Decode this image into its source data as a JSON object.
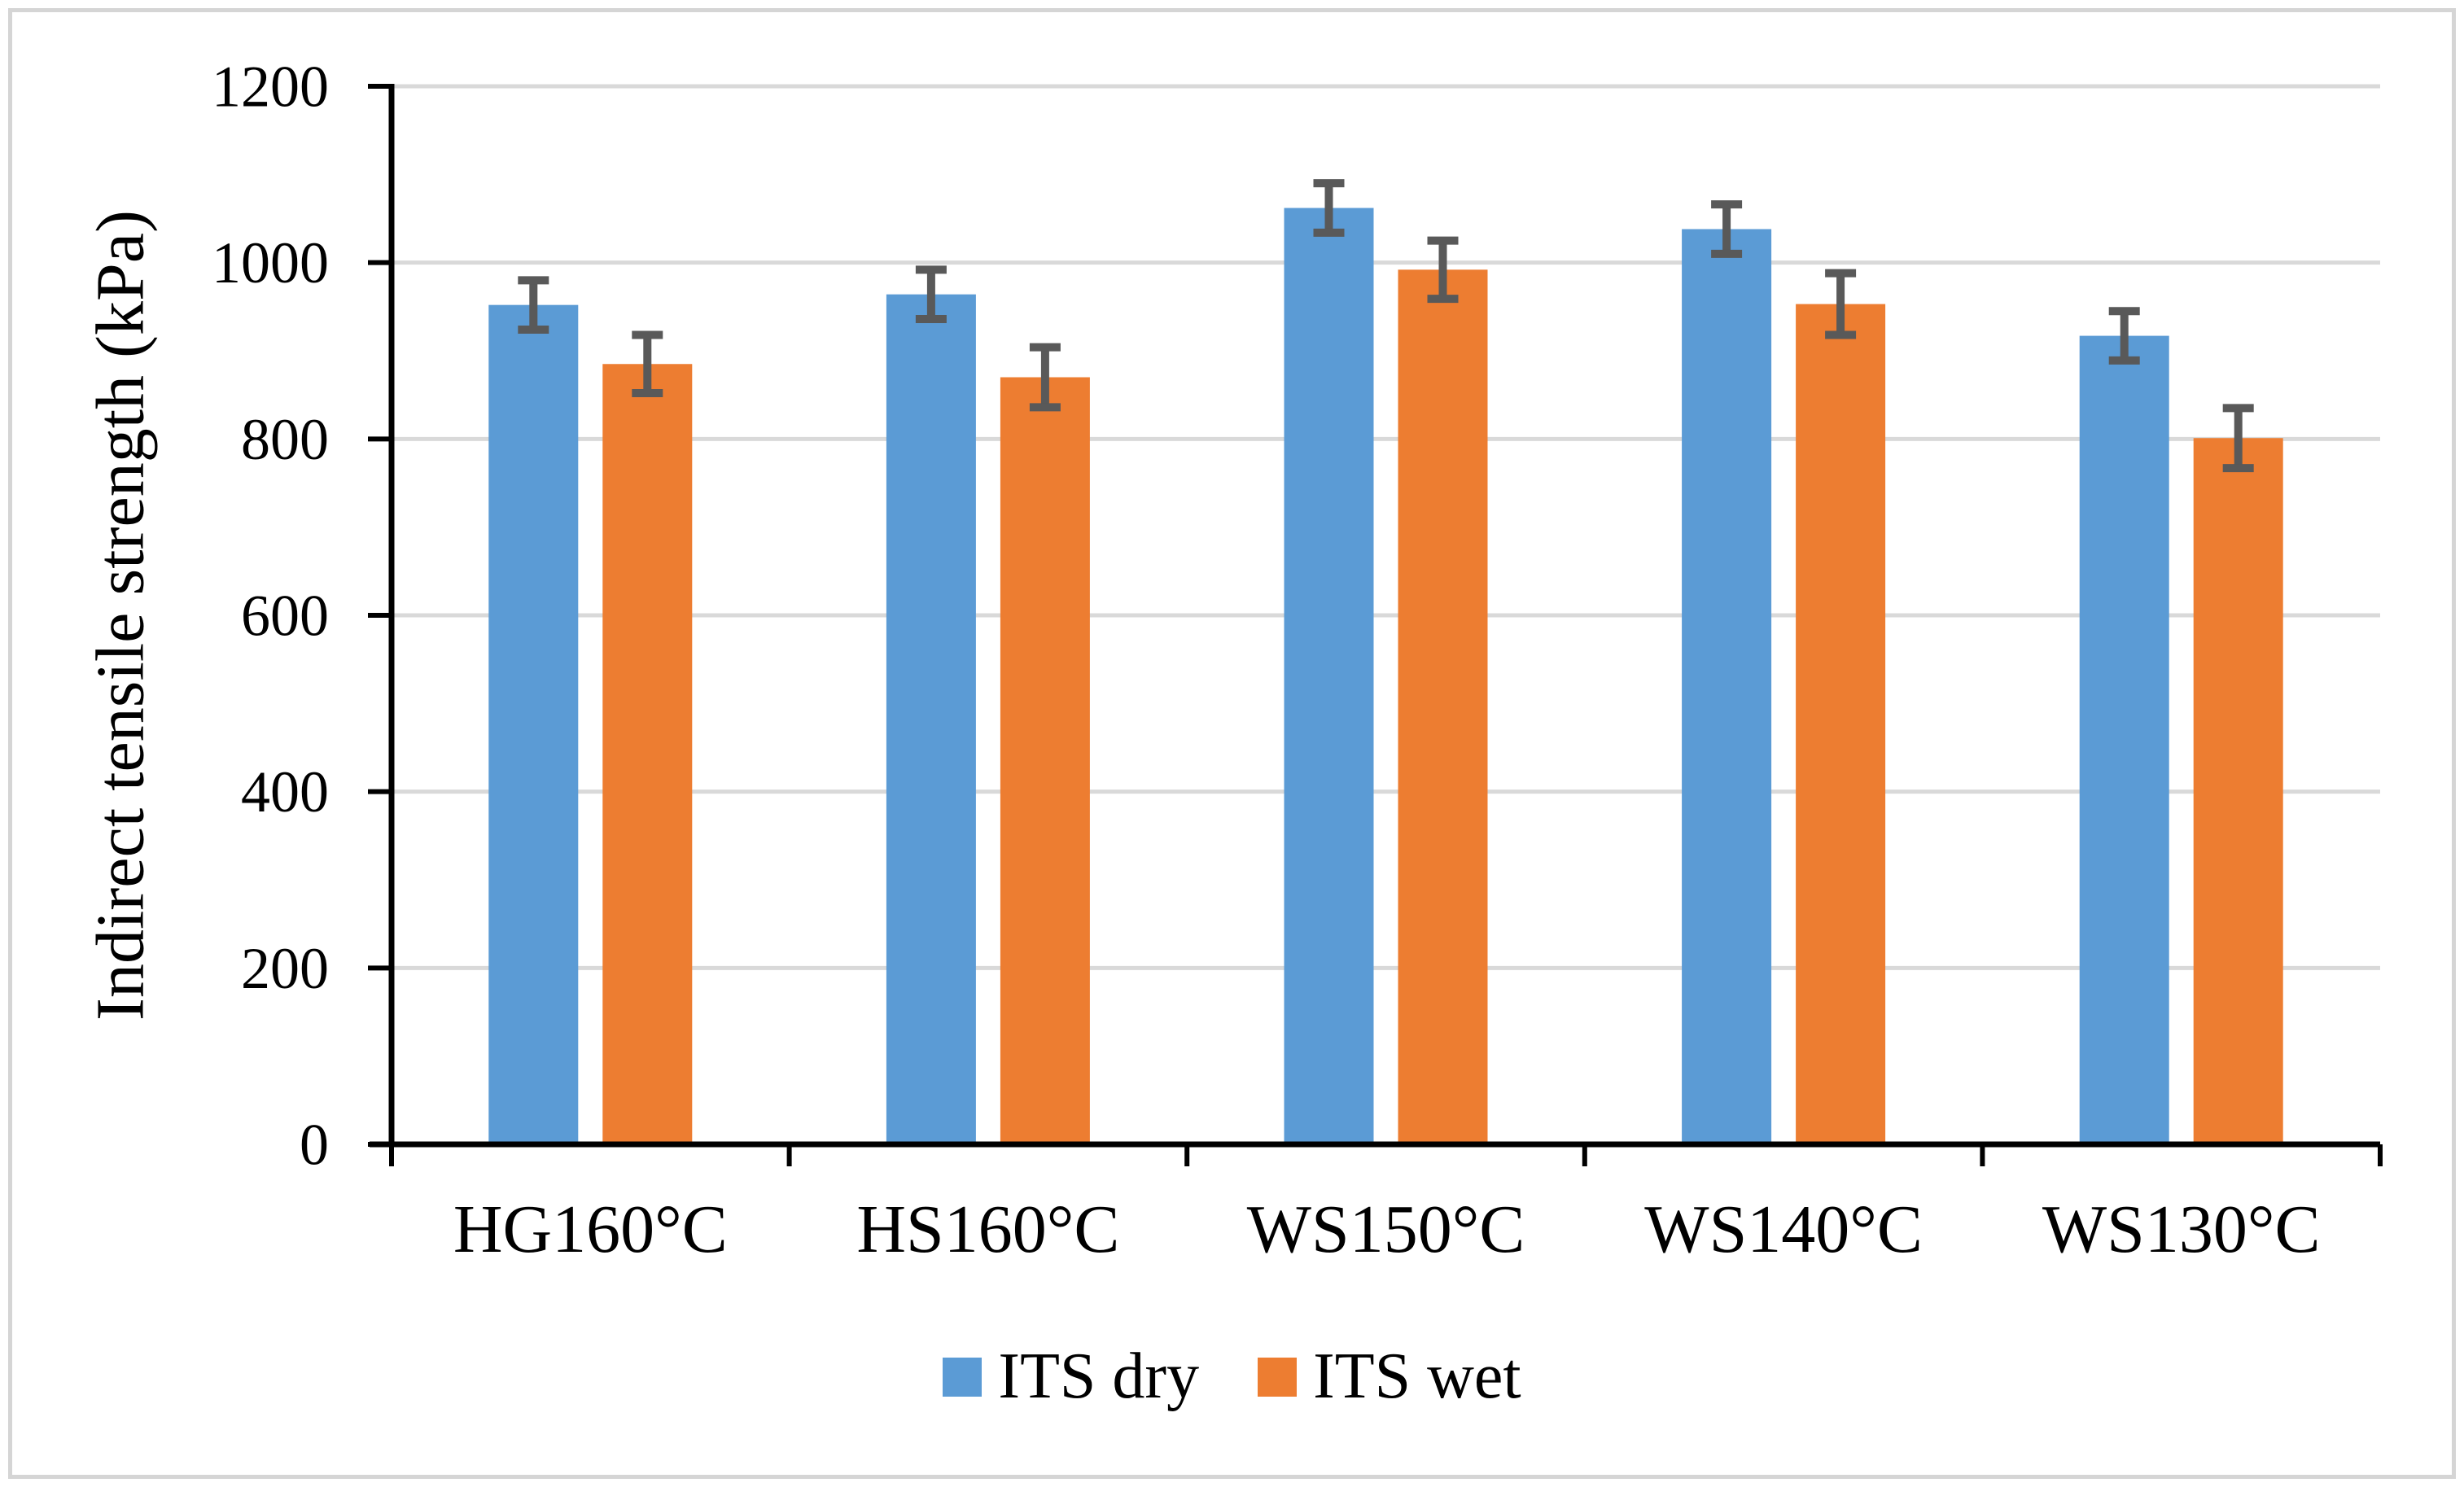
{
  "figure": {
    "background": "#ffffff",
    "border_color": "#d5d5d5"
  },
  "chart_data": {
    "type": "bar",
    "title": "",
    "xlabel": "",
    "ylabel": "Indirect tensile strength (kPa)",
    "categories": [
      "HG160°C",
      "HS160°C",
      "WS150°C",
      "WS140°C",
      "WS130°C"
    ],
    "series": [
      {
        "name": "ITS dry",
        "color": "#5B9BD5",
        "values": [
          952,
          964,
          1062,
          1038,
          917
        ],
        "errors": [
          28,
          28,
          28,
          28,
          28
        ]
      },
      {
        "name": "ITS wet",
        "color": "#ED7D31",
        "values": [
          885,
          870,
          992,
          953,
          801
        ],
        "errors": [
          33,
          34,
          33,
          35,
          34
        ]
      }
    ],
    "ylim": [
      0,
      1200
    ],
    "yticks": [
      0,
      200,
      400,
      600,
      800,
      1000,
      1200
    ],
    "grid": "horizontal",
    "legend_position": "bottom",
    "gridline_color": "#D9D9D9",
    "axis_color": "#000000",
    "error_bar_color": "#595959"
  }
}
